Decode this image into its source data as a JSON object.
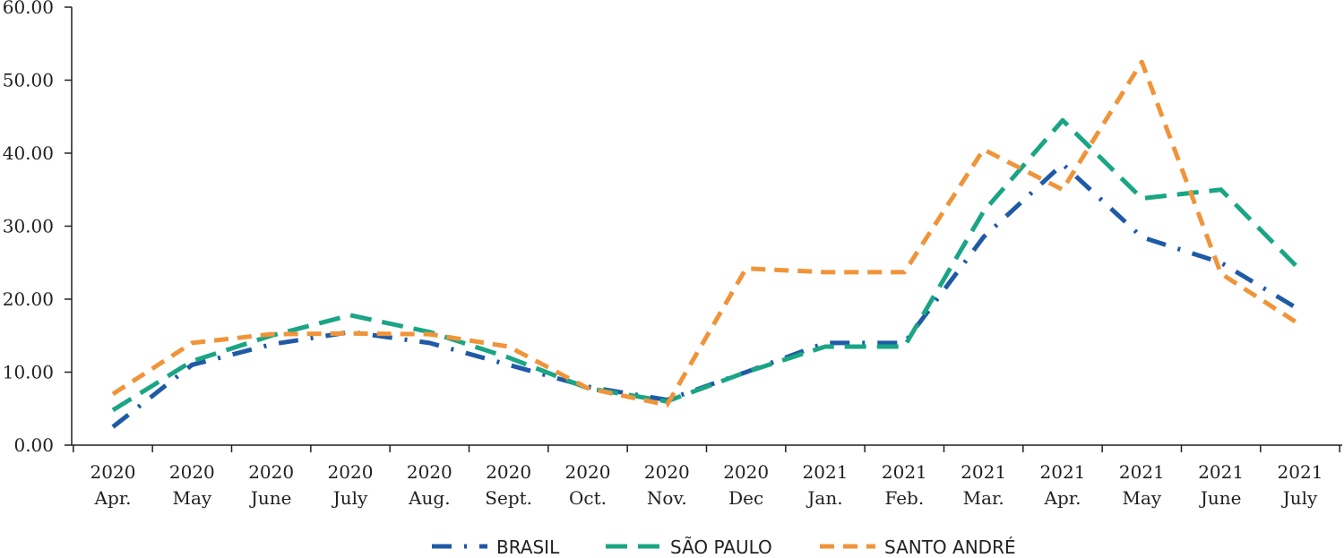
{
  "chart_data": {
    "type": "line",
    "categories": [
      [
        "2020",
        "Apr."
      ],
      [
        "2020",
        "May"
      ],
      [
        "2020",
        "June"
      ],
      [
        "2020",
        "July"
      ],
      [
        "2020",
        "Aug."
      ],
      [
        "2020",
        "Sept."
      ],
      [
        "2020",
        "Oct."
      ],
      [
        "2020",
        "Nov."
      ],
      [
        "2020",
        "Dec"
      ],
      [
        "2021",
        "Jan."
      ],
      [
        "2021",
        "Feb."
      ],
      [
        "2021",
        "Mar."
      ],
      [
        "2021",
        "Apr."
      ],
      [
        "2021",
        "May"
      ],
      [
        "2021",
        "June"
      ],
      [
        "2021",
        "July"
      ]
    ],
    "y_ticks": [
      "0.00",
      "10.00",
      "20.00",
      "30.00",
      "40.00",
      "50.00",
      "60.00"
    ],
    "ylim": [
      0,
      60
    ],
    "grid": false,
    "legend_position": "bottom",
    "series": [
      {
        "name": "BRASIL",
        "color": "#1f5aa6",
        "dash": "dash-dot",
        "values": [
          2.5,
          11.0,
          13.8,
          15.5,
          14.0,
          11.0,
          8.0,
          6.2,
          10.0,
          14.0,
          14.0,
          28.5,
          38.5,
          28.5,
          25.0,
          18.5
        ]
      },
      {
        "name": "SÃO PAULO",
        "color": "#1aa585",
        "dash": "dash",
        "values": [
          4.8,
          11.5,
          15.0,
          17.8,
          15.5,
          12.0,
          7.8,
          6.0,
          10.0,
          13.5,
          13.5,
          32.0,
          44.5,
          33.8,
          35.0,
          24.0
        ]
      },
      {
        "name": "SANTO ANDRÉ",
        "color": "#f0943a",
        "dash": "short-dash",
        "values": [
          7.0,
          14.0,
          15.2,
          15.3,
          15.2,
          13.5,
          7.8,
          5.5,
          24.2,
          23.7,
          23.7,
          40.5,
          35.0,
          52.5,
          23.5,
          16.5
        ]
      }
    ]
  }
}
